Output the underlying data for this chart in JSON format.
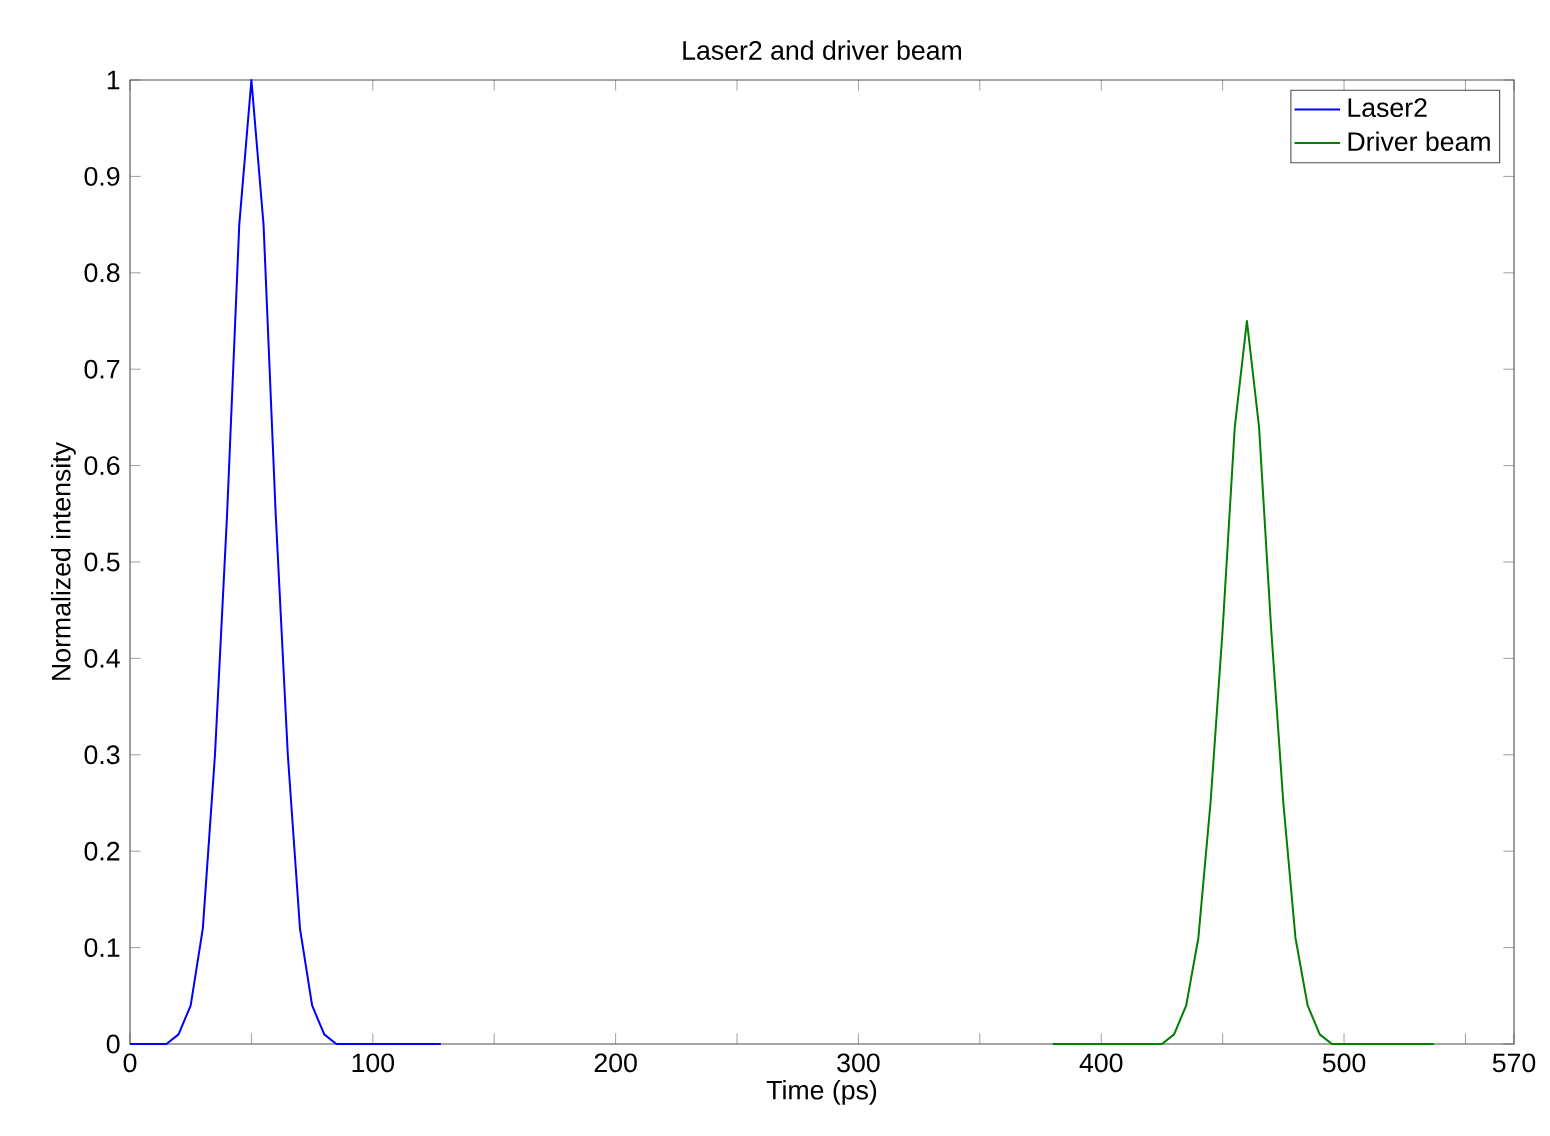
{
  "chart_data": {
    "type": "line",
    "title": "Laser2 and driver beam",
    "xlabel": "Time (ps)",
    "ylabel": "Normalized intensity",
    "xlim": [
      0,
      570
    ],
    "ylim": [
      0,
      1
    ],
    "xticks": [
      0,
      {
        "value": 50,
        "label": null
      },
      100,
      {
        "value": 150,
        "label": null
      },
      200,
      {
        "value": 250,
        "label": null
      },
      300,
      {
        "value": 350,
        "label": null
      },
      400,
      {
        "value": 450,
        "label": null
      },
      500,
      {
        "value": 550,
        "label": null
      },
      570
    ],
    "yticks": [
      0,
      0.1,
      0.2,
      0.3,
      0.4,
      0.5,
      0.6,
      0.7,
      0.8,
      0.9,
      1
    ],
    "legend": "top right",
    "grid": false,
    "marker": "none",
    "line_style": "solid",
    "series": [
      {
        "name": "Laser2",
        "color": "#0000ff",
        "x": [
          0,
          15,
          20,
          25,
          30,
          35,
          40,
          45,
          50,
          55,
          60,
          65,
          70,
          75,
          80,
          85,
          90,
          128
        ],
        "values": [
          0,
          0,
          0.01,
          0.04,
          0.12,
          0.3,
          0.55,
          0.85,
          1,
          0.85,
          0.55,
          0.3,
          0.12,
          0.04,
          0.01,
          0,
          0,
          0
        ]
      },
      {
        "name": "Driver beam",
        "color": "#008000",
        "x": [
          380,
          425,
          430,
          435,
          440,
          445,
          450,
          455,
          460,
          465,
          470,
          475,
          480,
          485,
          490,
          495,
          537
        ],
        "values": [
          0,
          0,
          0.01,
          0.04,
          0.11,
          0.25,
          0.43,
          0.64,
          0.75,
          0.64,
          0.43,
          0.25,
          0.11,
          0.04,
          0.01,
          0,
          0
        ]
      }
    ]
  }
}
